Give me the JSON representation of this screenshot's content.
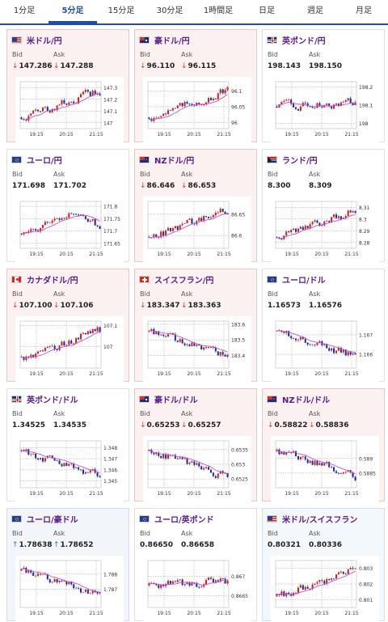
{
  "tabs": [
    {
      "label": "1分足",
      "active": false
    },
    {
      "label": "5分足",
      "active": true
    },
    {
      "label": "15分足",
      "active": false
    },
    {
      "label": "30分足",
      "active": false
    },
    {
      "label": "1時間足",
      "active": false
    },
    {
      "label": "日足",
      "active": false
    },
    {
      "label": "週足",
      "active": false
    },
    {
      "label": "月足",
      "active": false
    }
  ],
  "labels": {
    "bid": "Bid",
    "ask": "Ask"
  },
  "colors": {
    "title": "#5a1b8d",
    "down": "#d33333",
    "up": "#1a7fd0",
    "bull": "#d12020",
    "bear": "#1a2f9e",
    "ma": "#c54fd1",
    "tab_active": "#1d4fa3"
  },
  "pairs": [
    {
      "name": "米ドル/円",
      "flag": "us-flag",
      "bid": "147.286",
      "ask": "147.288",
      "dir": "down",
      "chart_data": {
        "type": "candlestick",
        "x_ticks": [
          "19:15",
          "20:15",
          "21:15"
        ],
        "y_ticks": [
          "147.3",
          "147.2",
          "147.1",
          "147"
        ],
        "ylim": [
          146.95,
          147.35
        ],
        "trend": "up"
      }
    },
    {
      "name": "豪ドル/円",
      "flag": "au-flag",
      "bid": "96.110",
      "ask": "96.115",
      "dir": "down",
      "chart_data": {
        "type": "candlestick",
        "x_ticks": [
          "19:15",
          "20:15",
          "21:15"
        ],
        "y_ticks": [
          "96.1",
          "96.05",
          "96"
        ],
        "ylim": [
          95.98,
          96.13
        ],
        "trend": "up"
      }
    },
    {
      "name": "英ポンド/円",
      "flag": "gb-flag",
      "bid": "198.143",
      "ask": "198.150",
      "dir": "none",
      "chart_data": {
        "type": "candlestick",
        "x_ticks": [
          "19:15",
          "20:15",
          "21:15"
        ],
        "y_ticks": [
          "198.2",
          "198.1",
          "198"
        ],
        "ylim": [
          197.97,
          198.23
        ],
        "trend": "flat"
      }
    },
    {
      "name": "ユーロ/円",
      "flag": "eu-flag",
      "bid": "171.698",
      "ask": "171.702",
      "dir": "none",
      "chart_data": {
        "type": "candlestick",
        "x_ticks": [
          "19:15",
          "20:15",
          "21:15"
        ],
        "y_ticks": [
          "171.8",
          "171.75",
          "171.7",
          "171.65"
        ],
        "ylim": [
          171.63,
          171.82
        ],
        "trend": "up-then-down"
      }
    },
    {
      "name": "NZドル/円",
      "flag": "nz-flag",
      "bid": "86.646",
      "ask": "86.653",
      "dir": "down",
      "chart_data": {
        "type": "candlestick",
        "x_ticks": [
          "19:15",
          "20:15",
          "21:15"
        ],
        "y_ticks": [
          "86.65",
          "86.6"
        ],
        "ylim": [
          86.57,
          86.68
        ],
        "trend": "up"
      }
    },
    {
      "name": "ランド/円",
      "flag": "za-flag",
      "bid": "8.300",
      "ask": "8.309",
      "dir": "none",
      "chart_data": {
        "type": "candlestick",
        "x_ticks": [
          "19:15",
          "20:15",
          "21:15"
        ],
        "y_ticks": [
          "8.31",
          "8.3",
          "8.29",
          "8.28"
        ],
        "ylim": [
          8.275,
          8.315
        ],
        "trend": "up"
      }
    },
    {
      "name": "カナダドル/円",
      "flag": "ca-flag",
      "bid": "107.100",
      "ask": "107.106",
      "dir": "down",
      "chart_data": {
        "type": "candlestick",
        "x_ticks": [
          "19:15",
          "20:15",
          "21:15"
        ],
        "y_ticks": [
          "107.1",
          "107"
        ],
        "ylim": [
          106.9,
          107.12
        ],
        "trend": "up"
      }
    },
    {
      "name": "スイスフラン/円",
      "flag": "ch-flag",
      "bid": "183.347",
      "ask": "183.363",
      "dir": "down",
      "chart_data": {
        "type": "candlestick",
        "x_ticks": [
          "19:15",
          "20:15",
          "21:15"
        ],
        "y_ticks": [
          "183.6",
          "183.5",
          "183.4"
        ],
        "ylim": [
          183.32,
          183.62
        ],
        "trend": "down"
      }
    },
    {
      "name": "ユーロ/ドル",
      "flag": "eu-us-flag",
      "bid": "1.16573",
      "ask": "1.16576",
      "dir": "none",
      "chart_data": {
        "type": "candlestick",
        "x_ticks": [
          "19:15",
          "20:15",
          "21:15"
        ],
        "y_ticks": [
          "1.167",
          "1.166"
        ],
        "ylim": [
          1.1653,
          1.1677
        ],
        "trend": "down"
      }
    },
    {
      "name": "英ポンド/ドル",
      "flag": "gb-us-flag",
      "bid": "1.34525",
      "ask": "1.34535",
      "dir": "none",
      "chart_data": {
        "type": "candlestick",
        "x_ticks": [
          "19:15",
          "20:15",
          "21:15"
        ],
        "y_ticks": [
          "1.348",
          "1.347",
          "1.346",
          "1.345"
        ],
        "ylim": [
          1.3444,
          1.3486
        ],
        "trend": "down"
      }
    },
    {
      "name": "豪ドル/ドル",
      "flag": "au-us-flag",
      "bid": "0.65253",
      "ask": "0.65257",
      "dir": "down",
      "chart_data": {
        "type": "candlestick",
        "x_ticks": [
          "19:15",
          "20:15",
          "21:15"
        ],
        "y_ticks": [
          "0.6535",
          "0.653",
          "0.6525"
        ],
        "ylim": [
          0.6522,
          0.6538
        ],
        "trend": "down"
      }
    },
    {
      "name": "NZドル/ドル",
      "flag": "nz-us-flag",
      "bid": "0.58822",
      "ask": "0.58836",
      "dir": "down",
      "chart_data": {
        "type": "candlestick",
        "x_ticks": [
          "19:15",
          "20:15",
          "21:15"
        ],
        "y_ticks": [
          "0.589",
          "0.5885"
        ],
        "ylim": [
          0.588,
          0.5896
        ],
        "trend": "down"
      }
    },
    {
      "name": "ユーロ/豪ドル",
      "flag": "eu-au-flag",
      "bid": "1.78638",
      "ask": "1.78652",
      "dir": "up",
      "chart_data": {
        "type": "candlestick",
        "x_ticks": [
          "19:15",
          "20:15",
          "21:15"
        ],
        "y_ticks": [
          "1.788",
          "1.787"
        ],
        "ylim": [
          1.7858,
          1.7889
        ],
        "trend": "down"
      }
    },
    {
      "name": "ユーロ/英ポンド",
      "flag": "eu-gb-flag",
      "bid": "0.86650",
      "ask": "0.86658",
      "dir": "none",
      "chart_data": {
        "type": "candlestick",
        "x_ticks": [
          "19:15",
          "20:15",
          "21:15"
        ],
        "y_ticks": [
          "0.867",
          "0.8665"
        ],
        "ylim": [
          0.8662,
          0.8674
        ],
        "trend": "flat"
      }
    },
    {
      "name": "米ドル/スイスフラン",
      "flag": "us-ch-flag",
      "bid": "0.80321",
      "ask": "0.80336",
      "dir": "none",
      "chart_data": {
        "type": "candlestick",
        "x_ticks": [
          "19:15",
          "20:15",
          "21:15"
        ],
        "y_ticks": [
          "0.803",
          "0.802",
          "0.801"
        ],
        "ylim": [
          0.8005,
          0.8035
        ],
        "trend": "up"
      }
    }
  ]
}
